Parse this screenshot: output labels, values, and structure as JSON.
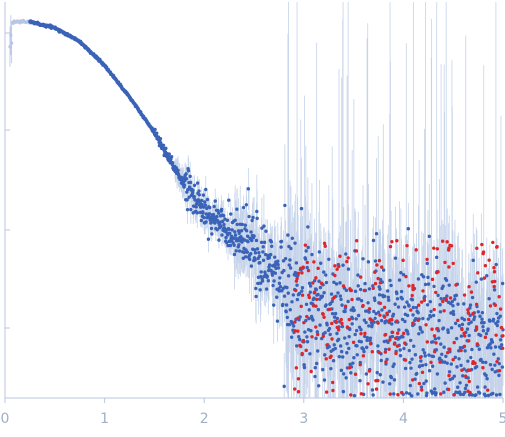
{
  "chart_data": {
    "type": "scatter",
    "title": "",
    "xlabel": "",
    "ylabel": "",
    "x_range": [
      0,
      5
    ],
    "log_y": true,
    "grid": false,
    "legend": "none",
    "x_ticks": [
      {
        "value": 0,
        "label": "0"
      },
      {
        "value": 1,
        "label": "1"
      },
      {
        "value": 2,
        "label": "2"
      },
      {
        "value": 3,
        "label": "3"
      },
      {
        "value": 4,
        "label": "4"
      },
      {
        "value": 5,
        "label": "5"
      }
    ],
    "y_ticks": [
      0,
      1,
      2,
      3
    ],
    "colors": {
      "axis": "#b9c6dd",
      "tick_label": "#9fb0c8",
      "error_bar": "#c5d3ea",
      "points": "#3a63b8",
      "excluded_low_q": "#b7c4e6",
      "negative_values": "#e0262a"
    },
    "series": [
      {
        "role": "intensity",
        "color_key": "points",
        "curve": [
          [
            0.25,
            1.0
          ],
          [
            0.5,
            0.97
          ],
          [
            0.75,
            0.9
          ],
          [
            1.0,
            0.78
          ],
          [
            1.25,
            0.62
          ],
          [
            1.5,
            0.44
          ],
          [
            1.75,
            0.22
          ],
          [
            2.0,
            0.05
          ],
          [
            2.5,
            -0.15
          ],
          [
            3.0,
            -0.45
          ],
          [
            4.0,
            -0.6
          ],
          [
            5.0,
            -0.65
          ]
        ]
      },
      {
        "role": "excluded",
        "color_key": "excluded_low_q",
        "x_range": [
          0.05,
          0.25
        ]
      },
      {
        "role": "negative",
        "color_key": "negative_values",
        "x_range": [
          2.9,
          5.0
        ]
      }
    ]
  }
}
